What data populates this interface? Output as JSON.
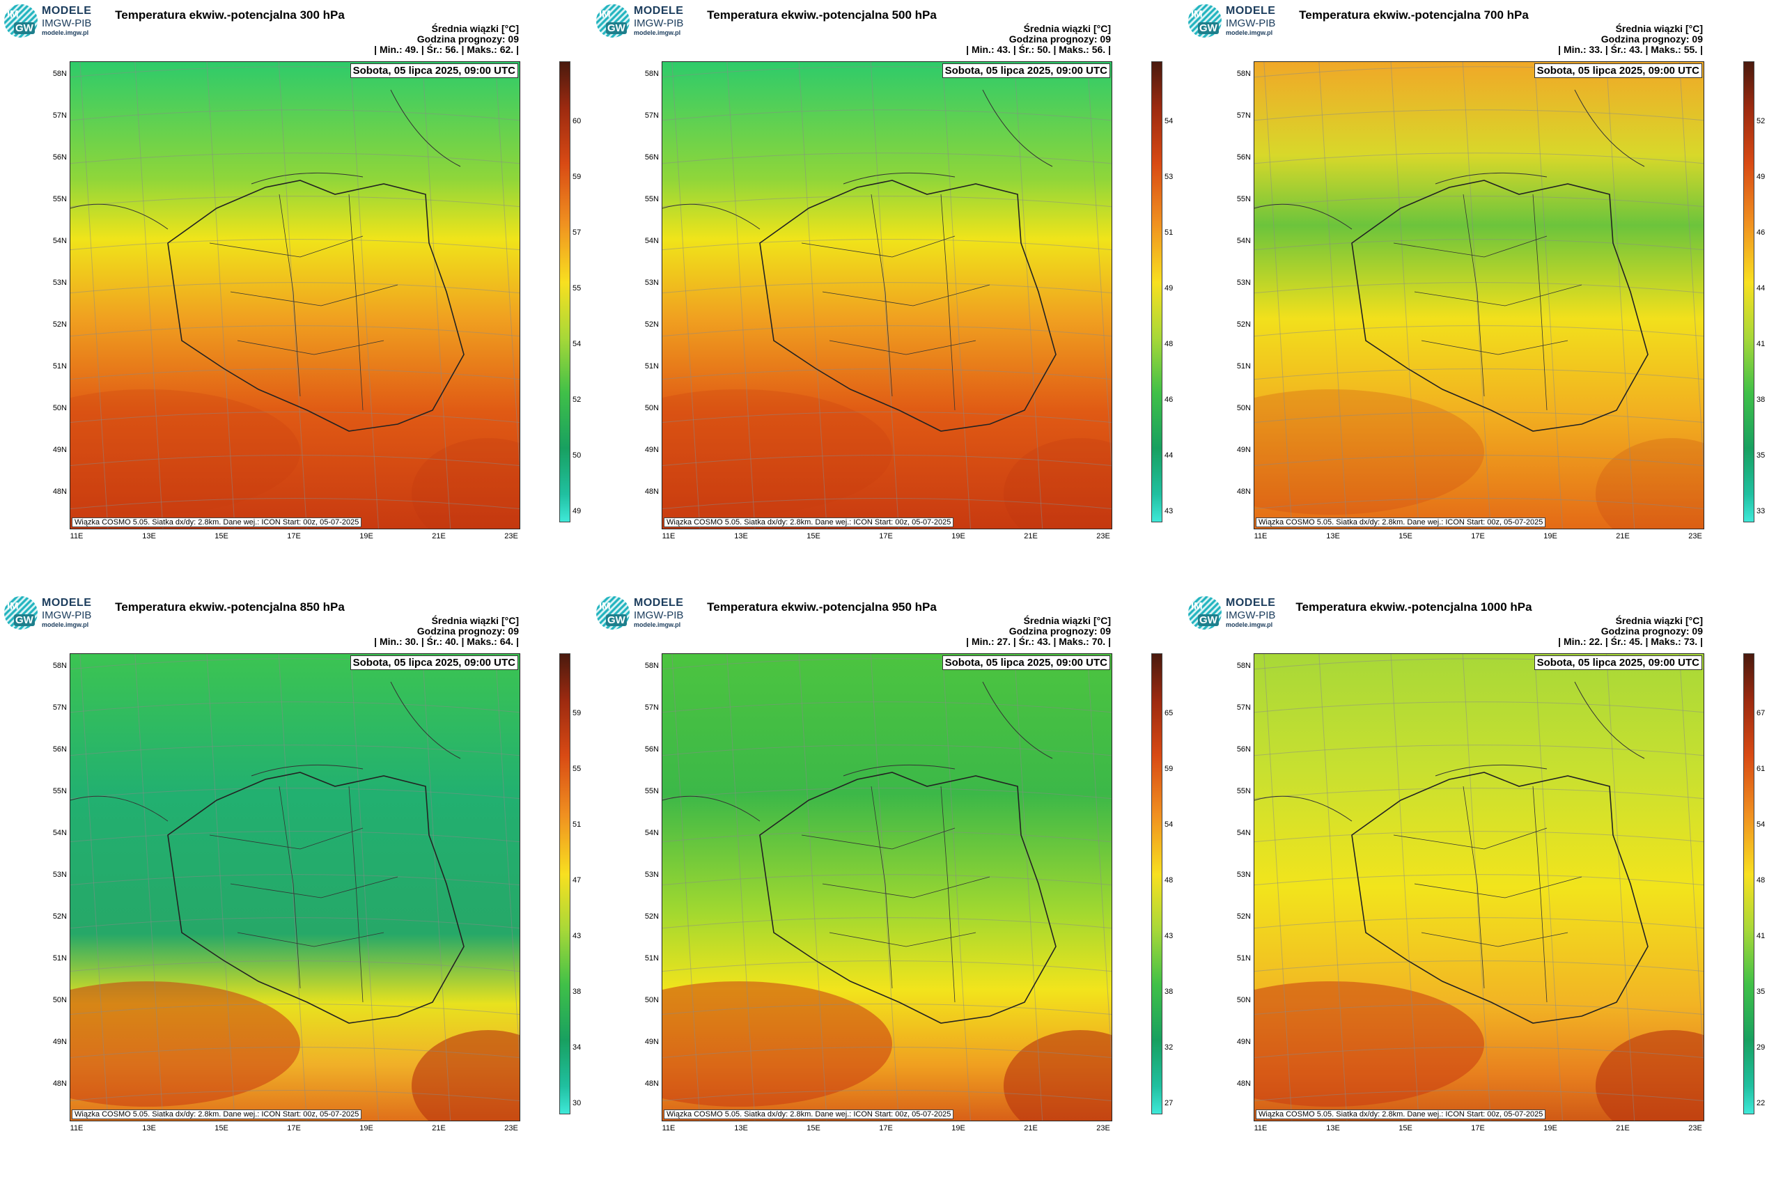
{
  "logo": {
    "line1": "MODELE",
    "line2": "IMGW-PIB",
    "line3": "modele.imgw.pl",
    "im": "IM",
    "gw": "GW"
  },
  "common": {
    "info_label": "Średnia wiązki [°C]",
    "forecast_hour": "Godzina prognozy: 09",
    "date": "Sobota, 05 lipca 2025, 09:00 UTC",
    "footer": "Wiązka COSMO 5.05. Siatka dx/dy: 2.8km. Dane wej.: ICON Start: 00z, 05-07-2025",
    "lat_labels": [
      "58N",
      "57N",
      "56N",
      "55N",
      "54N",
      "53N",
      "52N",
      "51N",
      "50N",
      "49N",
      "48N"
    ],
    "lon_labels": [
      "11E",
      "13E",
      "15E",
      "17E",
      "19E",
      "21E",
      "23E"
    ]
  },
  "panels": [
    {
      "title": "Temperatura ekwiw.-potencjalna 300 hPa",
      "stats": "| Min.: 49. | Śr.: 56. | Maks.: 62. |",
      "cbar_ticks": [
        "60",
        "59",
        "57",
        "55",
        "54",
        "52",
        "50",
        "49"
      ],
      "map_style": "hot"
    },
    {
      "title": "Temperatura ekwiw.-potencjalna 500 hPa",
      "stats": "| Min.: 43. | Śr.: 50. | Maks.: 56. |",
      "cbar_ticks": [
        "54",
        "53",
        "51",
        "49",
        "48",
        "46",
        "44",
        "43"
      ],
      "map_style": "hot"
    },
    {
      "title": "Temperatura ekwiw.-potencjalna 700 hPa",
      "stats": "| Min.: 33. | Śr.: 43. | Maks.: 55. |",
      "cbar_ticks": [
        "52",
        "49",
        "46",
        "44",
        "41",
        "38",
        "35",
        "33"
      ],
      "map_style": "warm"
    },
    {
      "title": "Temperatura ekwiw.-potencjalna 850 hPa",
      "stats": "| Min.: 30. | Śr.: 40. | Maks.: 64. |",
      "cbar_ticks": [
        "59",
        "55",
        "51",
        "47",
        "43",
        "38",
        "34",
        "30"
      ],
      "map_style": "green"
    },
    {
      "title": "Temperatura ekwiw.-potencjalna 950 hPa",
      "stats": "| Min.: 27. | Śr.: 43. | Maks.: 70. |",
      "cbar_ticks": [
        "65",
        "59",
        "54",
        "48",
        "43",
        "38",
        "32",
        "27"
      ],
      "map_style": "mixed"
    },
    {
      "title": "Temperatura ekwiw.-potencjalna 1000 hPa",
      "stats": "| Min.: 22. | Śr.: 45. | Maks.: 73. |",
      "cbar_ticks": [
        "67",
        "61",
        "54",
        "48",
        "41",
        "35",
        "29",
        "22"
      ],
      "map_style": "yellow"
    }
  ],
  "colors": {
    "cbar_top": "#4a1a0e",
    "cbar_bottom": "#3fe8d8"
  }
}
